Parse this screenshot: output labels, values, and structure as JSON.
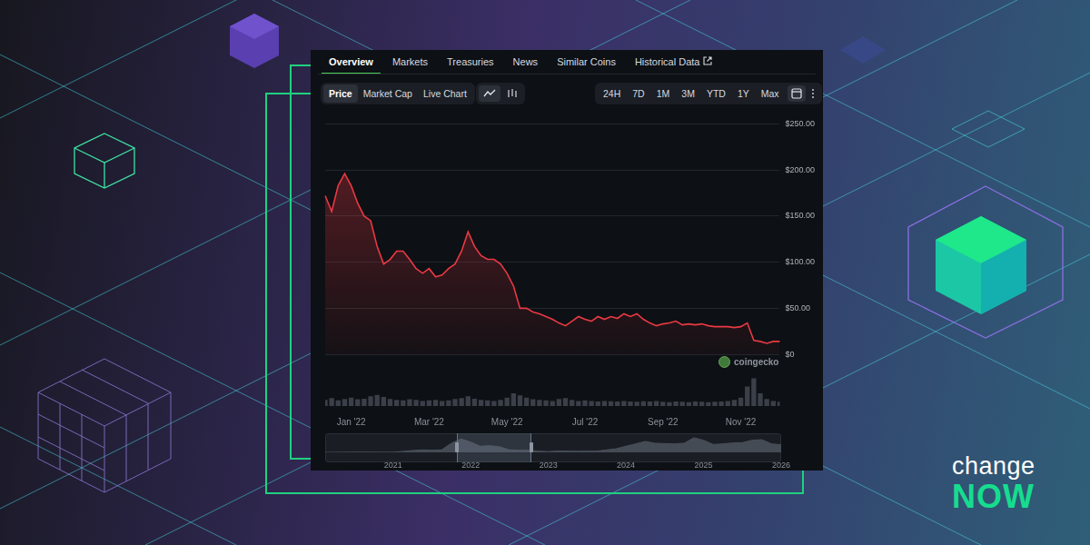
{
  "page": {
    "tabs": [
      "Overview",
      "Markets",
      "Treasuries",
      "News",
      "Similar Coins",
      "Historical Data"
    ],
    "chart_views": [
      "Price",
      "Market Cap",
      "Live Chart"
    ],
    "ranges": [
      "24H",
      "7D",
      "1M",
      "3M",
      "YTD",
      "1Y",
      "Max"
    ],
    "watermark": "coingecko",
    "brand": [
      "change",
      "NOW"
    ]
  },
  "chart_data": [
    {
      "type": "line",
      "categories": [
        null,
        null,
        null,
        null,
        "Jan '22",
        null,
        null,
        null,
        null,
        null,
        null,
        null,
        null,
        null,
        null,
        null,
        "Mar '22",
        null,
        null,
        null,
        null,
        null,
        null,
        null,
        null,
        null,
        null,
        null,
        "May '22",
        null,
        null,
        null,
        null,
        null,
        null,
        null,
        null,
        null,
        null,
        null,
        "Jul '22",
        null,
        null,
        null,
        null,
        null,
        null,
        null,
        null,
        null,
        null,
        null,
        "Sep '22",
        null,
        null,
        null,
        null,
        null,
        null,
        null,
        null,
        null,
        null,
        null,
        "Nov '22",
        null,
        null,
        null,
        null,
        null,
        null
      ],
      "series": [
        {
          "color": "#ea3943",
          "values": [
            172,
            155,
            183,
            196,
            183,
            164,
            150,
            145,
            117,
            98,
            103,
            112,
            112,
            103,
            93,
            88,
            93,
            84,
            86,
            93,
            98,
            112,
            133,
            117,
            107,
            103,
            103,
            98,
            88,
            74,
            50,
            50,
            46,
            44,
            41,
            38,
            34,
            31,
            36,
            41,
            38,
            36,
            41,
            38,
            41,
            39,
            44,
            41,
            44,
            38,
            34,
            31,
            33,
            34,
            36,
            32,
            33,
            32,
            33,
            31,
            30,
            30,
            30,
            29,
            30,
            34,
            15,
            14,
            12,
            14,
            14
          ]
        },
        {
          "type": "bar",
          "axis": "y2",
          "color": "#3a3f48",
          "values": [
            22,
            28,
            20,
            25,
            30,
            24,
            26,
            35,
            40,
            32,
            25,
            22,
            20,
            24,
            22,
            18,
            20,
            22,
            18,
            20,
            25,
            28,
            35,
            26,
            22,
            20,
            18,
            22,
            30,
            45,
            38,
            30,
            24,
            22,
            20,
            18,
            25,
            28,
            22,
            18,
            20,
            18,
            16,
            18,
            17,
            16,
            18,
            16,
            15,
            17,
            16,
            18,
            15,
            14,
            16,
            15,
            14,
            16,
            15,
            14,
            15,
            16,
            18,
            22,
            30,
            70,
            100,
            45,
            25,
            18,
            15
          ]
        }
      ],
      "ylim": [
        0,
        250
      ],
      "yticks": [
        {
          "value": 0,
          "label": "$0"
        },
        {
          "value": 50,
          "label": "$50.00"
        },
        {
          "value": 100,
          "label": "$100.00"
        },
        {
          "value": 150,
          "label": "$150.00"
        },
        {
          "value": 200,
          "label": "$200.00"
        },
        {
          "value": 250,
          "label": "$250.00"
        }
      ],
      "y2lim": [
        0,
        100
      ],
      "grid": true
    },
    {
      "type": "line",
      "categories": [
        null,
        null,
        null,
        null,
        null,
        null,
        null,
        "2021",
        null,
        null,
        null,
        null,
        null,
        null,
        null,
        "2022",
        null,
        null,
        null,
        null,
        null,
        null,
        null,
        "2023",
        null,
        null,
        null,
        null,
        null,
        null,
        null,
        "2024",
        null,
        null,
        null,
        null,
        null,
        null,
        null,
        "2025",
        null,
        null,
        null,
        null,
        null,
        null,
        null,
        "2026"
      ],
      "series": [
        {
          "color": "#4a505a",
          "values": [
            1,
            1,
            2,
            3,
            4,
            3,
            2,
            3,
            15,
            30,
            40,
            35,
            40,
            150,
            220,
            170,
            100,
            110,
            90,
            40,
            35,
            33,
            20,
            12,
            22,
            21,
            18,
            20,
            20,
            40,
            60,
            100,
            140,
            180,
            150,
            145,
            140,
            150,
            240,
            200,
            130,
            140,
            155,
            160,
            200,
            210,
            140,
            125
          ]
        }
      ],
      "ylim": [
        0,
        300
      ],
      "grid": false,
      "tick_labels": "x"
    }
  ]
}
